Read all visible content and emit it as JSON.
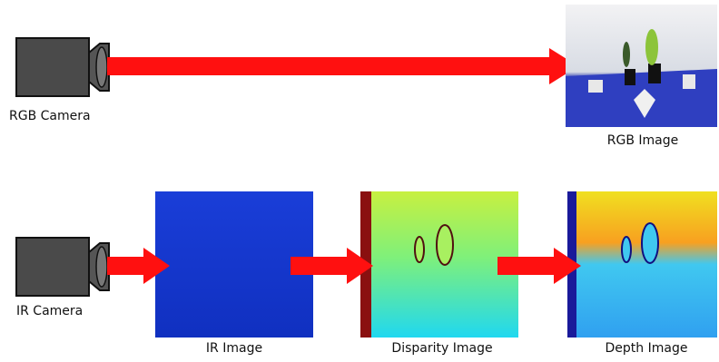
{
  "nodes": [
    {
      "label": "RGB Camera"
    },
    {
      "label": "RGB Image"
    },
    {
      "label": "IR Camera"
    },
    {
      "label": "IR Image"
    },
    {
      "label": "Disparity Image"
    },
    {
      "label": "Depth Image"
    }
  ]
}
